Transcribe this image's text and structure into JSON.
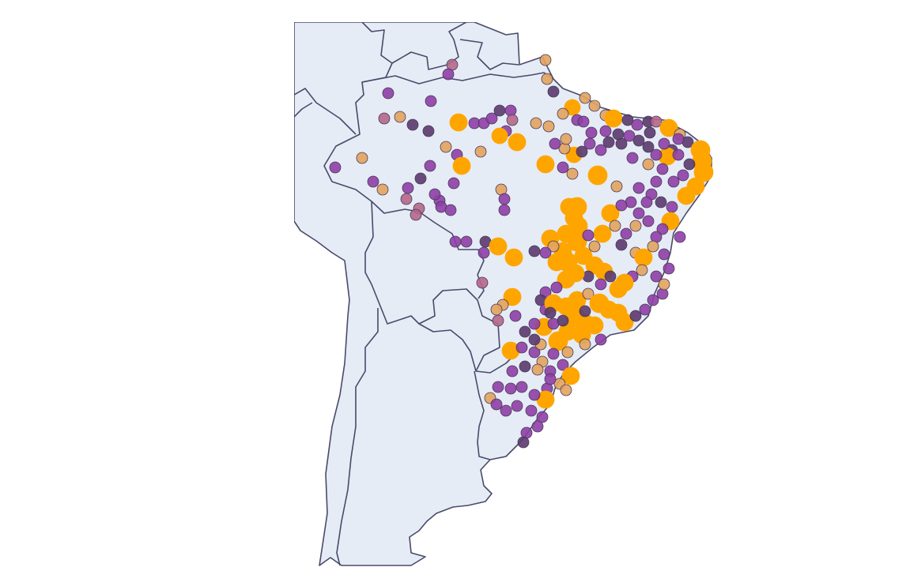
{
  "map": {
    "type": "scatter_geo",
    "region": "South America",
    "land_color": "#e5ecf6",
    "border_color": "#4a4a6a",
    "background_color": "#ffffff"
  },
  "chart_data": {
    "type": "scatter",
    "marker_palette": [
      {
        "name": "dark-purple",
        "color": "#5b3a6e"
      },
      {
        "name": "purple",
        "color": "#8e3fa6"
      },
      {
        "name": "mauve",
        "color": "#b5678a"
      },
      {
        "name": "tan",
        "color": "#e2a35e"
      },
      {
        "name": "orange",
        "color": "#ffa500"
      }
    ],
    "lon_range": [
      -82,
      -34
    ],
    "lat_range": [
      -56,
      13
    ]
  }
}
